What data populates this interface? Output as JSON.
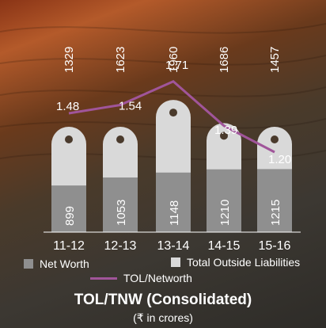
{
  "chart_data": {
    "type": "bar",
    "title": "TOL/TNW (Consolidated)",
    "subtitle": "(₹ in crores)",
    "categories": [
      "11-12",
      "12-13",
      "13-14",
      "14-15",
      "15-16"
    ],
    "series": [
      {
        "name": "Net Worth",
        "values": [
          899,
          1053,
          1148,
          1210,
          1215
        ],
        "color": "#8f8f8f"
      },
      {
        "name": "Total Outside Liabilities",
        "values": [
          1329,
          1623,
          1960,
          1686,
          1457
        ],
        "color": "#d9d9d9"
      }
    ],
    "line_series": {
      "name": "TOL/Networth",
      "values": [
        1.48,
        1.54,
        1.71,
        1.39,
        1.2
      ],
      "color": "#a0559a"
    },
    "legend": [
      "Net Worth",
      "Total Outside Liabilities",
      "TOL/Networth"
    ],
    "legend_placement": "bottom",
    "grid": false
  }
}
